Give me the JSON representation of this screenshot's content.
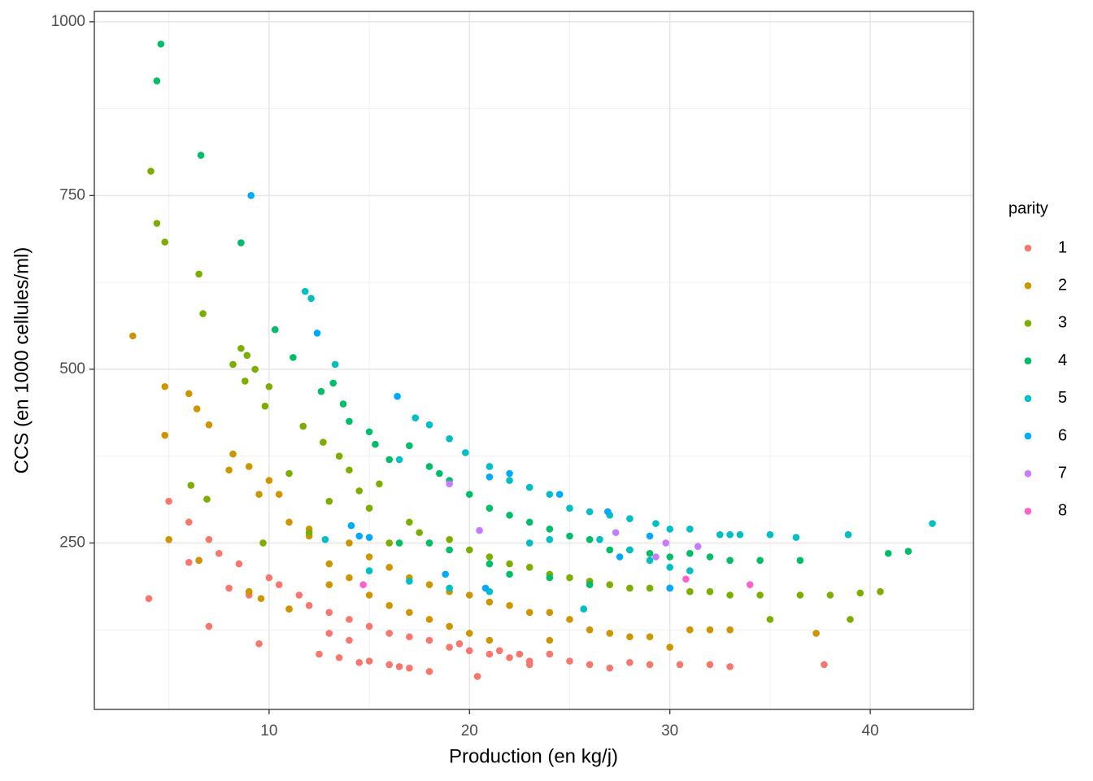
{
  "chart_data": {
    "type": "scatter",
    "x_label": "Production (en kg/j)",
    "y_label": "CCS (en 1000 cellules/ml)",
    "legend_title": "parity",
    "legend_position": "right",
    "xlim": [
      1.28,
      45.15
    ],
    "ylim": [
      10.5,
      1015
    ],
    "xticks": [
      10,
      20,
      30,
      40
    ],
    "yticks": [
      250,
      500,
      750,
      1000
    ],
    "xminorticks": [
      5,
      15,
      25,
      35,
      45
    ],
    "yminorticks": [
      125,
      375,
      625,
      875
    ],
    "grid": true,
    "series": [
      {
        "name": "1",
        "color": "#F8766D",
        "x": [
          4.0,
          5.0,
          6.0,
          6.0,
          6.5,
          7.0,
          7.0,
          7.5,
          8.0,
          8.5,
          9.0,
          9.5,
          10,
          10.5,
          11,
          11.5,
          12,
          12.5,
          13,
          13,
          14,
          14,
          15,
          15,
          16,
          16,
          17,
          17,
          18,
          18,
          19,
          20,
          20.4,
          21,
          22,
          23,
          23,
          24,
          25,
          26,
          27,
          28,
          29,
          30.5,
          32,
          33,
          37.7,
          13.5,
          14.5,
          16.5,
          19.5,
          21.5,
          22.5
        ],
        "values": [
          170,
          310,
          280,
          222,
          225,
          255,
          130,
          235,
          185,
          220,
          175,
          105,
          200,
          190,
          155,
          175,
          160,
          90,
          120,
          150,
          110,
          140,
          80,
          130,
          120,
          75,
          115,
          70,
          65,
          110,
          100,
          95,
          58,
          90,
          85,
          80,
          75,
          90,
          80,
          75,
          70,
          78,
          75,
          75,
          75,
          72,
          75,
          85,
          78,
          72,
          105,
          95,
          90
        ]
      },
      {
        "name": "2",
        "color": "#CD9600",
        "x": [
          3.2,
          4.8,
          4.8,
          5.0,
          6.0,
          6.4,
          6.5,
          7.0,
          8.0,
          8.2,
          9.0,
          9.0,
          9.5,
          10,
          9.6,
          10.5,
          11,
          11,
          12,
          12,
          13,
          13,
          14,
          14,
          15,
          15,
          16,
          16,
          17,
          17,
          18,
          18,
          19,
          19,
          20,
          20,
          21,
          21,
          22,
          23,
          24,
          24,
          25,
          26,
          27,
          28,
          29,
          30,
          31,
          32,
          33,
          37.3
        ],
        "values": [
          548,
          475,
          405,
          255,
          465,
          443,
          225,
          420,
          355,
          378,
          360,
          180,
          320,
          340,
          170,
          320,
          280,
          155,
          270,
          260,
          220,
          190,
          250,
          200,
          230,
          175,
          215,
          160,
          200,
          150,
          190,
          140,
          180,
          130,
          175,
          120,
          165,
          110,
          160,
          150,
          150,
          110,
          140,
          125,
          120,
          115,
          115,
          100,
          125,
          125,
          125,
          120
        ]
      },
      {
        "name": "3",
        "color": "#7CAE00",
        "x": [
          4.1,
          4.4,
          4.8,
          6.1,
          6.5,
          6.7,
          6.9,
          8.2,
          8.6,
          8.8,
          8.9,
          9.3,
          9.7,
          9.8,
          10,
          11,
          11.7,
          12,
          12.7,
          13,
          13.5,
          14,
          14.5,
          15,
          15.5,
          16,
          17,
          17.5,
          18,
          19,
          20,
          21,
          22,
          23,
          24,
          25,
          26,
          27,
          28,
          29,
          30,
          31,
          32,
          33,
          34.5,
          35,
          36.5,
          38,
          39,
          39.5,
          40.5
        ],
        "values": [
          785,
          710,
          683,
          333,
          637,
          580,
          313,
          507,
          530,
          483,
          520,
          500,
          250,
          447,
          475,
          350,
          418,
          265,
          395,
          310,
          375,
          355,
          325,
          300,
          335,
          250,
          280,
          265,
          250,
          255,
          240,
          230,
          220,
          215,
          205,
          200,
          195,
          190,
          185,
          185,
          185,
          180,
          180,
          175,
          175,
          140,
          175,
          175,
          140,
          178,
          180
        ]
      },
      {
        "name": "4",
        "color": "#00BE67",
        "x": [
          4.4,
          4.6,
          6.6,
          8.6,
          10.3,
          11.2,
          12.6,
          13.2,
          13.7,
          14,
          15,
          15.3,
          16,
          17,
          18,
          18.5,
          19,
          20,
          21,
          22,
          23,
          24,
          25,
          26,
          27,
          28,
          29,
          30,
          31,
          32,
          33,
          34.5,
          36.5,
          40.9,
          41.9,
          16.5,
          18,
          19,
          21,
          22,
          24,
          26
        ],
        "values": [
          915,
          968,
          808,
          682,
          557,
          517,
          468,
          480,
          450,
          425,
          410,
          392,
          370,
          390,
          360,
          350,
          340,
          320,
          300,
          290,
          280,
          270,
          260,
          255,
          240,
          240,
          235,
          230,
          235,
          230,
          225,
          225,
          225,
          235,
          238,
          250,
          250,
          240,
          220,
          205,
          200,
          190
        ]
      },
      {
        "name": "5",
        "color": "#00BFC4",
        "x": [
          11.8,
          12.1,
          13.3,
          16.5,
          17.3,
          18,
          19,
          19.8,
          21,
          22,
          23,
          24,
          25,
          26,
          27,
          28,
          29.3,
          30,
          31,
          32.5,
          33,
          33.5,
          35,
          36.3,
          38.9,
          43.1,
          26.5,
          28,
          29,
          30,
          31,
          23,
          24,
          12.8,
          15,
          17,
          19,
          21,
          25.7
        ],
        "values": [
          612,
          602,
          507,
          370,
          430,
          420,
          400,
          380,
          360,
          340,
          330,
          320,
          300,
          295,
          290,
          285,
          278,
          270,
          270,
          262,
          262,
          262,
          262,
          258,
          262,
          278,
          255,
          240,
          225,
          215,
          210,
          250,
          255,
          255,
          210,
          195,
          185,
          180,
          155
        ]
      },
      {
        "name": "6",
        "color": "#00A9FF",
        "x": [
          9.1,
          12.4,
          16.4,
          14.1,
          15,
          18.8,
          21,
          22,
          24.5,
          27.5,
          29,
          30,
          20.8,
          14.5,
          26.9
        ],
        "values": [
          750,
          552,
          461,
          275,
          258,
          205,
          345,
          350,
          320,
          230,
          260,
          185,
          185,
          260,
          295
        ]
      },
      {
        "name": "7",
        "color": "#C77CFF",
        "x": [
          19,
          20.5,
          27.3,
          29.8,
          31.4,
          29.3
        ],
        "values": [
          335,
          268,
          265,
          250,
          245,
          230
        ]
      },
      {
        "name": "8",
        "color": "#FF61CC",
        "x": [
          14.7,
          30.8,
          34
        ],
        "values": [
          190,
          198,
          190
        ]
      }
    ]
  }
}
